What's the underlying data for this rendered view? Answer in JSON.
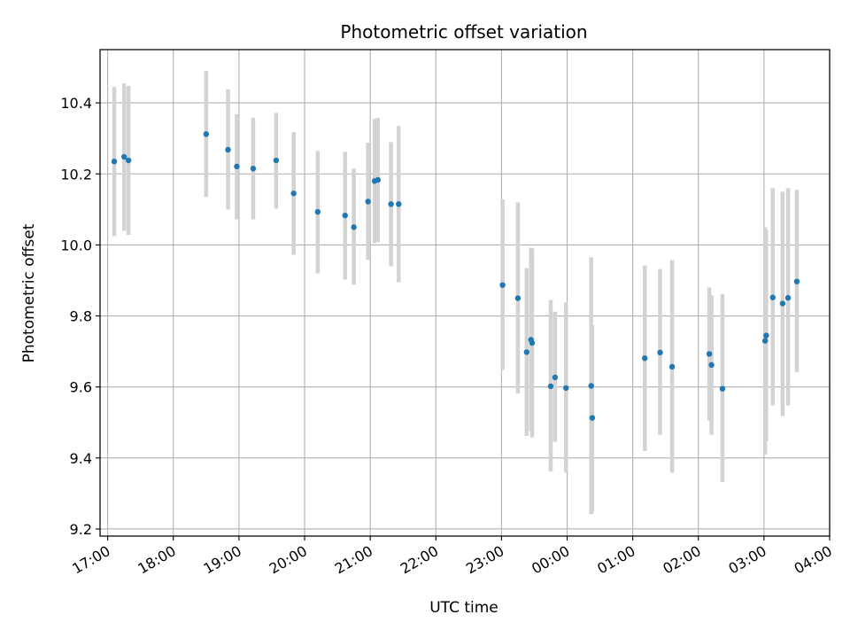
{
  "chart_data": {
    "type": "scatter",
    "title": "Photometric offset variation",
    "xlabel": "UTC time",
    "ylabel": "Photometric offset",
    "x_axis_kind": "time",
    "x_tick_labels": [
      "17:00",
      "18:00",
      "19:00",
      "20:00",
      "21:00",
      "22:00",
      "23:00",
      "00:00",
      "01:00",
      "02:00",
      "03:00",
      "04:00"
    ],
    "y_ticks": [
      9.2,
      9.4,
      9.6,
      9.8,
      10.0,
      10.2,
      10.4
    ],
    "y_tick_labels": [
      "9.2",
      "9.4",
      "9.6",
      "9.8",
      "10.0",
      "10.2",
      "10.4"
    ],
    "ylim": [
      9.18,
      10.55
    ],
    "xlim": [
      "16:53",
      "04:00"
    ],
    "grid": true,
    "legend": "none",
    "colors": {
      "point": "#1f77b4",
      "errorbar": "#d3d3d3",
      "grid": "#b0b0b0"
    },
    "series": [
      {
        "points": [
          {
            "x": "17:06",
            "y": 10.235,
            "low": 10.025,
            "high": 10.445
          },
          {
            "x": "17:15",
            "y": 10.248,
            "low": 10.04,
            "high": 10.455
          },
          {
            "x": "17:19",
            "y": 10.238,
            "low": 10.028,
            "high": 10.448
          },
          {
            "x": "18:30",
            "y": 10.312,
            "low": 10.135,
            "high": 10.49
          },
          {
            "x": "18:50",
            "y": 10.268,
            "low": 10.1,
            "high": 10.438
          },
          {
            "x": "18:58",
            "y": 10.221,
            "low": 10.072,
            "high": 10.368
          },
          {
            "x": "19:13",
            "y": 10.215,
            "low": 10.072,
            "high": 10.358
          },
          {
            "x": "19:34",
            "y": 10.238,
            "low": 10.102,
            "high": 10.372
          },
          {
            "x": "19:50",
            "y": 10.145,
            "low": 9.972,
            "high": 10.318
          },
          {
            "x": "20:12",
            "y": 10.093,
            "low": 9.92,
            "high": 10.265
          },
          {
            "x": "20:37",
            "y": 10.083,
            "low": 9.902,
            "high": 10.262
          },
          {
            "x": "20:45",
            "y": 10.05,
            "low": 9.888,
            "high": 10.215
          },
          {
            "x": "20:58",
            "y": 10.122,
            "low": 9.958,
            "high": 10.288
          },
          {
            "x": "21:04",
            "y": 10.18,
            "low": 10.005,
            "high": 10.355
          },
          {
            "x": "21:07",
            "y": 10.183,
            "low": 10.008,
            "high": 10.358
          },
          {
            "x": "21:19",
            "y": 10.115,
            "low": 9.94,
            "high": 10.29
          },
          {
            "x": "21:26",
            "y": 10.115,
            "low": 9.895,
            "high": 10.335
          },
          {
            "x": "23:01",
            "y": 9.887,
            "low": 9.648,
            "high": 10.128
          },
          {
            "x": "23:15",
            "y": 9.85,
            "low": 9.582,
            "high": 10.12
          },
          {
            "x": "23:23",
            "y": 9.698,
            "low": 9.462,
            "high": 9.935
          },
          {
            "x": "23:27",
            "y": 9.733,
            "low": 9.475,
            "high": 9.992
          },
          {
            "x": "23:28",
            "y": 9.724,
            "low": 9.458,
            "high": 9.99
          },
          {
            "x": "23:45",
            "y": 9.602,
            "low": 9.362,
            "high": 9.845
          },
          {
            "x": "23:49",
            "y": 9.627,
            "low": 9.445,
            "high": 9.812
          },
          {
            "x": "23:59",
            "y": 9.597,
            "low": 9.358,
            "high": 9.838
          },
          {
            "x": "00:22",
            "y": 9.603,
            "low": 9.242,
            "high": 9.965
          },
          {
            "x": "00:23",
            "y": 9.513,
            "low": 9.25,
            "high": 9.775
          },
          {
            "x": "01:11",
            "y": 9.681,
            "low": 9.42,
            "high": 9.942
          },
          {
            "x": "01:25",
            "y": 9.697,
            "low": 9.465,
            "high": 9.932
          },
          {
            "x": "01:36",
            "y": 9.657,
            "low": 9.358,
            "high": 9.957
          },
          {
            "x": "02:10",
            "y": 9.693,
            "low": 9.505,
            "high": 9.88
          },
          {
            "x": "02:12",
            "y": 9.662,
            "low": 9.465,
            "high": 9.858
          },
          {
            "x": "02:22",
            "y": 9.595,
            "low": 9.332,
            "high": 9.862
          },
          {
            "x": "03:01",
            "y": 9.73,
            "low": 9.41,
            "high": 10.05
          },
          {
            "x": "03:02",
            "y": 9.745,
            "low": 9.448,
            "high": 10.042
          },
          {
            "x": "03:08",
            "y": 9.852,
            "low": 9.548,
            "high": 10.16
          },
          {
            "x": "03:17",
            "y": 9.835,
            "low": 9.518,
            "high": 10.15
          },
          {
            "x": "03:22",
            "y": 9.851,
            "low": 9.548,
            "high": 10.16
          },
          {
            "x": "03:30",
            "y": 9.897,
            "low": 9.642,
            "high": 10.155
          }
        ]
      }
    ]
  }
}
